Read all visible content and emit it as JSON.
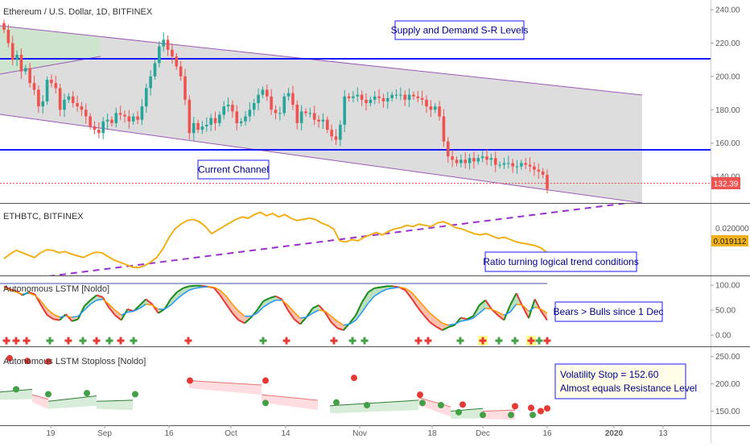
{
  "colors": {
    "bull": "#26a69a",
    "bear": "#ef5350",
    "channel_line": "#9b59b6",
    "channel_fill": "#d9d9d9",
    "sr_line": "#1a1aff",
    "ratio_line": "#f0b019",
    "trend_dashed": "#9932cc",
    "lstm_green": "#1a8a1a",
    "lstm_red": "#e53935",
    "lstm_blue": "#2196f3",
    "lstm_orange": "#ff9800",
    "stop_dot_red": "#e53935",
    "stop_dot_green": "#43a047",
    "price_tag": "#ef5350",
    "ratio_tag": "#f0b019"
  },
  "panes": {
    "price": {
      "title": "Ethereum / U.S. Dollar, 1D, BITFINEX",
      "last_price": "132.39",
      "annotation_top": "Supply and Demand S-R Levels",
      "annotation_channel": "Current Channel"
    },
    "ratio": {
      "title": "ETHBTC, BITFINEX",
      "last_value": "0.019112",
      "top_axis": "0.020000",
      "annotation": "Ratio turning logical trend conditions"
    },
    "lstm": {
      "title": "Autonomous LSTM [Noldo]",
      "annotation": "Bears > Bulls since 1 Dec"
    },
    "stop": {
      "title": "Autonomous LSTM Stoploss [Noldo]",
      "annotation_line1": "Volatility Stop = 152.60",
      "annotation_line2": "Almost equals Resistance Level"
    }
  },
  "chart_data": [
    {
      "type": "candlestick",
      "title": "Ethereum / U.S. Dollar, 1D, BITFINEX",
      "y_range": [
        126,
        242
      ],
      "y_ticks": [
        "240.00",
        "220.00",
        "200.00",
        "180.00",
        "160.00",
        "140.00"
      ],
      "x_tick_labels": [
        "19",
        "Sep",
        "16",
        "Oct",
        "14",
        "Nov",
        "18",
        "Dec",
        "16",
        "2020",
        "13"
      ],
      "close_series": [
        228,
        220,
        210,
        213,
        203,
        205,
        196,
        192,
        182,
        185,
        198,
        196,
        193,
        180,
        186,
        188,
        184,
        182,
        180,
        176,
        170,
        168,
        166,
        173,
        174,
        172,
        178,
        177,
        176,
        173,
        176,
        174,
        182,
        193,
        200,
        208,
        218,
        222,
        216,
        212,
        206,
        200,
        186,
        166,
        172,
        168,
        170,
        171,
        175,
        172,
        177,
        182,
        183,
        179,
        172,
        173,
        176,
        180,
        184,
        189,
        192,
        188,
        180,
        178,
        178,
        188,
        190,
        183,
        172,
        179,
        178,
        178,
        174,
        173,
        174,
        168,
        164,
        162,
        171,
        188,
        187,
        188,
        189,
        186,
        184,
        186,
        188,
        187,
        185,
        187,
        189,
        189,
        189,
        186,
        189,
        188,
        187,
        186,
        182,
        180,
        182,
        176,
        161,
        152,
        150,
        148,
        150,
        148,
        151,
        149,
        151,
        152,
        150,
        151,
        147,
        147,
        148,
        148,
        146,
        146,
        148,
        147,
        146,
        144,
        143,
        141,
        132.39
      ],
      "support_resistance": [
        208,
        152
      ],
      "last_price": 132.39
    },
    {
      "type": "line",
      "title": "ETHBTC, BITFINEX",
      "y_tick_labels": [
        "0.020000"
      ],
      "last_value": 0.019112,
      "relative_shape": [
        0.2,
        0.28,
        0.34,
        0.3,
        0.26,
        0.22,
        0.3,
        0.35,
        0.34,
        0.3,
        0.32,
        0.28,
        0.25,
        0.22,
        0.27,
        0.31,
        0.3,
        0.24,
        0.18,
        0.14,
        0.1,
        0.06,
        0.05,
        0.08,
        0.14,
        0.22,
        0.36,
        0.55,
        0.7,
        0.78,
        0.84,
        0.86,
        0.82,
        0.74,
        0.62,
        0.68,
        0.74,
        0.8,
        0.86,
        0.9,
        0.88,
        0.94,
        0.98,
        0.92,
        0.96,
        0.9,
        0.94,
        0.88,
        0.84,
        0.86,
        0.88,
        0.86,
        0.8,
        0.76,
        0.7,
        0.5,
        0.48,
        0.52,
        0.5,
        0.56,
        0.6,
        0.64,
        0.6,
        0.66,
        0.7,
        0.72,
        0.76,
        0.74,
        0.78,
        0.76,
        0.74,
        0.8,
        0.82,
        0.78,
        0.72,
        0.7,
        0.66,
        0.62,
        0.6,
        0.62,
        0.58,
        0.54,
        0.56,
        0.52,
        0.48,
        0.46,
        0.44,
        0.42,
        0.38,
        0.3
      ]
    },
    {
      "type": "line",
      "title": "Autonomous LSTM [Noldo]",
      "y_range": [
        -3,
        105
      ],
      "y_ticks": [
        "100.00",
        "50.00",
        "0.00"
      ],
      "fast": [
        98,
        92,
        88,
        80,
        86,
        82,
        60,
        40,
        32,
        30,
        42,
        28,
        32,
        58,
        70,
        80,
        76,
        55,
        40,
        30,
        52,
        48,
        60,
        72,
        62,
        44,
        52,
        72,
        86,
        94,
        98,
        99,
        99,
        97,
        95,
        80,
        62,
        44,
        30,
        24,
        35,
        50,
        68,
        74,
        78,
        72,
        50,
        32,
        22,
        36,
        54,
        60,
        46,
        26,
        14,
        10,
        24,
        40,
        66,
        86,
        94,
        96,
        98,
        98,
        96,
        90,
        74,
        56,
        40,
        26,
        17,
        10,
        16,
        20,
        35,
        32,
        38,
        60,
        70,
        52,
        40,
        30,
        60,
        84,
        58,
        34,
        72,
        48,
        30
      ],
      "slow": [
        95,
        90,
        86,
        82,
        84,
        80,
        68,
        52,
        42,
        36,
        38,
        36,
        38,
        50,
        62,
        70,
        72,
        62,
        50,
        40,
        46,
        48,
        54,
        62,
        60,
        52,
        52,
        60,
        72,
        82,
        90,
        94,
        96,
        97,
        96,
        90,
        78,
        62,
        48,
        38,
        38,
        44,
        56,
        64,
        70,
        70,
        60,
        46,
        34,
        36,
        44,
        50,
        48,
        38,
        28,
        20,
        22,
        30,
        46,
        64,
        78,
        86,
        92,
        94,
        96,
        94,
        86,
        72,
        58,
        44,
        34,
        24,
        20,
        22,
        28,
        30,
        34,
        44,
        54,
        52,
        46,
        40,
        46,
        62,
        60,
        48,
        56,
        52,
        44
      ],
      "bull_markers": 9,
      "bear_markers": 11
    },
    {
      "type": "scatter",
      "title": "Autonomous LSTM Stoploss [Noldo]",
      "y_range": [
        133,
        257
      ],
      "y_ticks": [
        "250.00",
        "200.00",
        "150.00"
      ],
      "red_stop_points": [
        247,
        242,
        241,
        206,
        206,
        211,
        180,
        162,
        159,
        156,
        150,
        155
      ],
      "green_stop_points": [
        190,
        181,
        183,
        181,
        165,
        166,
        161,
        165,
        161,
        148,
        143,
        143,
        143
      ],
      "volatility_stop": 152.6
    }
  ]
}
